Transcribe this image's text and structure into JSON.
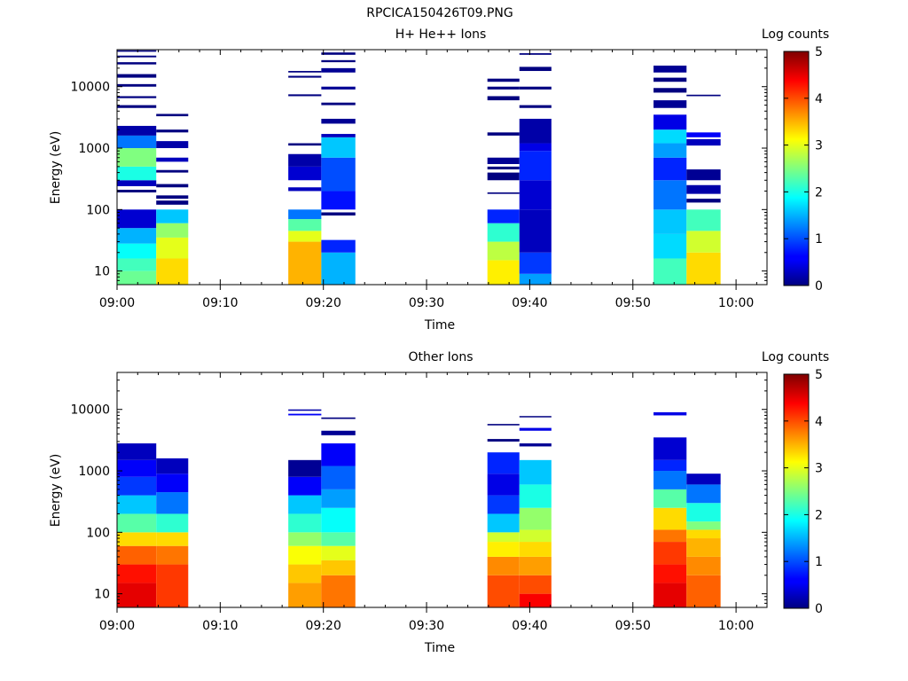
{
  "figure": {
    "title": "RPCICA150426T09.PNG",
    "colorbar": {
      "label": "Log counts",
      "min": 0,
      "max": 5,
      "ticks": [
        "0",
        "1",
        "2",
        "3",
        "4",
        "5"
      ]
    }
  },
  "chart_data": [
    {
      "type": "heatmap",
      "title": "H+ He++ Ions",
      "xlabel": "Time",
      "ylabel": "Energy (eV)",
      "x_tick_labels": [
        "09:00",
        "09:10",
        "09:20",
        "09:30",
        "09:40",
        "09:50",
        "10:00"
      ],
      "y_tick_labels": [
        "10",
        "100",
        "1000",
        "10000"
      ],
      "y_scale": "log",
      "ylim": [
        6,
        40000
      ],
      "xlim_minutes": [
        0,
        63
      ],
      "colorbar_label": "Log counts",
      "colorbar_range": [
        0,
        5
      ],
      "columns": [
        {
          "t0": 0.0,
          "t1": 3.8,
          "cells": [
            [
              6,
              10,
              2.4
            ],
            [
              10,
              16,
              2.2
            ],
            [
              16,
              28,
              1.9
            ],
            [
              28,
              50,
              1.5
            ],
            [
              50,
              100,
              0.4
            ],
            [
              190,
              210,
              0
            ],
            [
              240,
              300,
              0.3
            ],
            [
              300,
              500,
              2.0
            ],
            [
              500,
              1000,
              2.5
            ],
            [
              1000,
              1600,
              1.2
            ],
            [
              1600,
              2300,
              0.2
            ],
            [
              4500,
              5000,
              0
            ],
            [
              6500,
              7000,
              0
            ],
            [
              10000,
              11000,
              0
            ],
            [
              14000,
              16000,
              0
            ],
            [
              23000,
              25000,
              0
            ],
            [
              30000,
              32000,
              0
            ],
            [
              37000,
              39000,
              0
            ]
          ]
        },
        {
          "t0": 3.8,
          "t1": 6.9,
          "cells": [
            [
              6,
              16,
              3.3
            ],
            [
              16,
              35,
              3.0
            ],
            [
              35,
              60,
              2.6
            ],
            [
              60,
              100,
              1.6
            ],
            [
              120,
              140,
              0
            ],
            [
              150,
              170,
              0
            ],
            [
              230,
              260,
              0
            ],
            [
              400,
              440,
              0
            ],
            [
              600,
              700,
              0.3
            ],
            [
              1000,
              1300,
              0.2
            ],
            [
              1800,
              2000,
              0
            ],
            [
              3300,
              3600,
              0
            ]
          ]
        },
        {
          "t0": 16.6,
          "t1": 19.8,
          "cells": [
            [
              6,
              30,
              3.5
            ],
            [
              30,
              45,
              3.0
            ],
            [
              45,
              70,
              2.3
            ],
            [
              70,
              100,
              1.2
            ],
            [
              200,
              230,
              0.3
            ],
            [
              300,
              500,
              0.4
            ],
            [
              500,
              800,
              0.2
            ],
            [
              1100,
              1200,
              0
            ],
            [
              7000,
              7500,
              0
            ],
            [
              14000,
              15000,
              0
            ],
            [
              17000,
              18000,
              0
            ]
          ]
        },
        {
          "t0": 19.8,
          "t1": 23.1,
          "cells": [
            [
              6,
              20,
              1.5
            ],
            [
              20,
              32,
              0.8
            ],
            [
              80,
              90,
              0
            ],
            [
              100,
              200,
              0.7
            ],
            [
              200,
              700,
              1.0
            ],
            [
              700,
              1500,
              1.6
            ],
            [
              1500,
              1700,
              0.3
            ],
            [
              2500,
              3000,
              0.1
            ],
            [
              5000,
              5500,
              0
            ],
            [
              9000,
              10000,
              0.1
            ],
            [
              17000,
              20000,
              0.1
            ],
            [
              25000,
              27000,
              0
            ],
            [
              33000,
              36000,
              0
            ]
          ]
        },
        {
          "t0": 35.9,
          "t1": 39.0,
          "cells": [
            [
              6,
              15,
              3.2
            ],
            [
              15,
              30,
              2.8
            ],
            [
              30,
              60,
              2.1
            ],
            [
              60,
              100,
              0.8
            ],
            [
              180,
              190,
              0
            ],
            [
              300,
              400,
              0
            ],
            [
              450,
              500,
              0
            ],
            [
              550,
              700,
              0.1
            ],
            [
              1600,
              1800,
              0
            ],
            [
              6000,
              7000,
              0
            ],
            [
              9000,
              10000,
              0
            ],
            [
              12000,
              13500,
              0
            ]
          ]
        },
        {
          "t0": 39.0,
          "t1": 42.1,
          "cells": [
            [
              6,
              9,
              1.4
            ],
            [
              9,
              20,
              0.9
            ],
            [
              20,
              100,
              0.3
            ],
            [
              100,
              300,
              0.4
            ],
            [
              300,
              900,
              0.8
            ],
            [
              900,
              1200,
              0.5
            ],
            [
              1200,
              3000,
              0.2
            ],
            [
              4500,
              5000,
              0
            ],
            [
              9000,
              10000,
              0
            ],
            [
              18000,
              21000,
              0
            ],
            [
              33000,
              35000,
              0
            ]
          ]
        },
        {
          "t0": 52.0,
          "t1": 55.2,
          "cells": [
            [
              6,
              16,
              2.2
            ],
            [
              16,
              40,
              1.7
            ],
            [
              40,
              100,
              1.6
            ],
            [
              100,
              300,
              1.2
            ],
            [
              300,
              700,
              0.8
            ],
            [
              700,
              1200,
              1.4
            ],
            [
              1200,
              2000,
              1.7
            ],
            [
              2000,
              3500,
              0.5
            ],
            [
              4500,
              6000,
              0.1
            ],
            [
              8000,
              9500,
              0
            ],
            [
              12000,
              14000,
              0
            ],
            [
              17000,
              22000,
              0.1
            ]
          ]
        },
        {
          "t0": 55.2,
          "t1": 58.5,
          "cells": [
            [
              6,
              20,
              3.3
            ],
            [
              20,
              45,
              2.9
            ],
            [
              45,
              100,
              2.2
            ],
            [
              130,
              150,
              0
            ],
            [
              180,
              250,
              0.2
            ],
            [
              300,
              450,
              0.1
            ],
            [
              1100,
              1400,
              0.3
            ],
            [
              1500,
              1800,
              0.6
            ],
            [
              7000,
              7400,
              0
            ]
          ]
        }
      ]
    },
    {
      "type": "heatmap",
      "title": "Other Ions",
      "xlabel": "Time",
      "ylabel": "Energy (eV)",
      "x_tick_labels": [
        "09:00",
        "09:10",
        "09:20",
        "09:30",
        "09:40",
        "09:50",
        "10:00"
      ],
      "y_tick_labels": [
        "10",
        "100",
        "1000",
        "10000"
      ],
      "y_scale": "log",
      "ylim": [
        6,
        40000
      ],
      "xlim_minutes": [
        0,
        63
      ],
      "colorbar_label": "Log counts",
      "colorbar_range": [
        0,
        5
      ],
      "columns": [
        {
          "t0": 0.0,
          "t1": 3.8,
          "cells": [
            [
              6,
              15,
              4.5
            ],
            [
              15,
              30,
              4.3
            ],
            [
              30,
              60,
              3.9
            ],
            [
              60,
              100,
              3.3
            ],
            [
              100,
              200,
              2.3
            ],
            [
              200,
              400,
              1.6
            ],
            [
              400,
              800,
              0.9
            ],
            [
              800,
              1500,
              0.6
            ],
            [
              1500,
              2800,
              0.3
            ]
          ]
        },
        {
          "t0": 3.8,
          "t1": 6.9,
          "cells": [
            [
              6,
              30,
              4.1
            ],
            [
              30,
              60,
              3.8
            ],
            [
              60,
              100,
              3.3
            ],
            [
              100,
              200,
              2.1
            ],
            [
              200,
              450,
              1.2
            ],
            [
              450,
              900,
              0.6
            ],
            [
              900,
              1600,
              0.3
            ]
          ]
        },
        {
          "t0": 16.6,
          "t1": 19.8,
          "cells": [
            [
              6,
              15,
              3.6
            ],
            [
              15,
              30,
              3.4
            ],
            [
              30,
              60,
              3.1
            ],
            [
              60,
              100,
              2.6
            ],
            [
              100,
              200,
              2.1
            ],
            [
              200,
              400,
              1.6
            ],
            [
              400,
              800,
              0.6
            ],
            [
              800,
              1500,
              0.1
            ],
            [
              8000,
              8500,
              0.6
            ],
            [
              9500,
              10000,
              0.2
            ]
          ]
        },
        {
          "t0": 19.8,
          "t1": 23.1,
          "cells": [
            [
              6,
              20,
              3.8
            ],
            [
              20,
              35,
              3.4
            ],
            [
              35,
              60,
              3.0
            ],
            [
              60,
              100,
              2.3
            ],
            [
              100,
              250,
              1.9
            ],
            [
              250,
              500,
              1.4
            ],
            [
              500,
              1200,
              1.1
            ],
            [
              1200,
              2800,
              0.6
            ],
            [
              3800,
              4500,
              0.1
            ],
            [
              7000,
              7400,
              0
            ]
          ]
        },
        {
          "t0": 35.9,
          "t1": 39.0,
          "cells": [
            [
              6,
              20,
              4.0
            ],
            [
              20,
              40,
              3.7
            ],
            [
              40,
              70,
              3.2
            ],
            [
              70,
              100,
              2.9
            ],
            [
              100,
              200,
              1.6
            ],
            [
              200,
              400,
              0.9
            ],
            [
              400,
              900,
              0.5
            ],
            [
              900,
              2000,
              0.8
            ],
            [
              3000,
              3300,
              0
            ],
            [
              5500,
              5800,
              0
            ]
          ]
        },
        {
          "t0": 39.0,
          "t1": 42.1,
          "cells": [
            [
              6,
              10,
              4.4
            ],
            [
              10,
              20,
              4.0
            ],
            [
              20,
              40,
              3.6
            ],
            [
              40,
              70,
              3.3
            ],
            [
              70,
              110,
              2.9
            ],
            [
              110,
              250,
              2.6
            ],
            [
              250,
              600,
              2.0
            ],
            [
              600,
              1500,
              1.6
            ],
            [
              2500,
              2800,
              0.1
            ],
            [
              4500,
              5000,
              0.5
            ],
            [
              7500,
              7800,
              0
            ]
          ]
        },
        {
          "t0": 52.0,
          "t1": 55.2,
          "cells": [
            [
              6,
              15,
              4.5
            ],
            [
              15,
              30,
              4.3
            ],
            [
              30,
              70,
              4.1
            ],
            [
              70,
              110,
              3.8
            ],
            [
              110,
              250,
              3.3
            ],
            [
              250,
              500,
              2.3
            ],
            [
              500,
              1000,
              1.2
            ],
            [
              1000,
              1500,
              0.8
            ],
            [
              1500,
              3500,
              0.4
            ],
            [
              8000,
              9000,
              0.5
            ]
          ]
        },
        {
          "t0": 55.2,
          "t1": 58.5,
          "cells": [
            [
              6,
              20,
              3.9
            ],
            [
              20,
              40,
              3.7
            ],
            [
              40,
              80,
              3.5
            ],
            [
              80,
              110,
              3.3
            ],
            [
              110,
              150,
              2.5
            ],
            [
              150,
              300,
              2.0
            ],
            [
              300,
              600,
              1.2
            ],
            [
              600,
              900,
              0.3
            ]
          ]
        }
      ]
    }
  ]
}
